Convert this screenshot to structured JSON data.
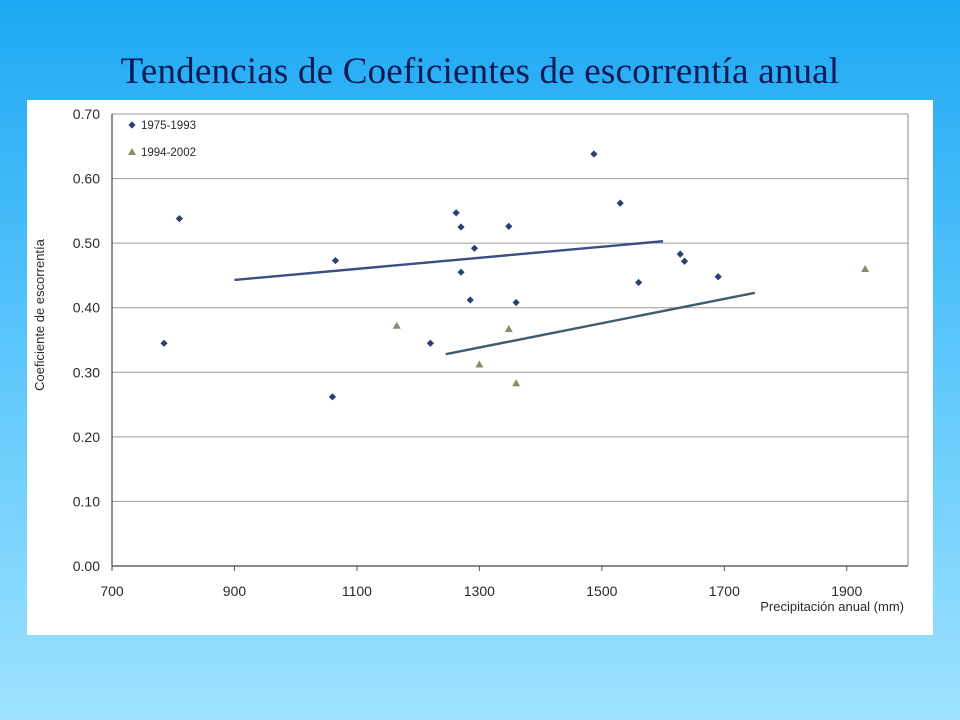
{
  "slide": {
    "title": "Tendencias de Coeficientes de escorrentía anual"
  },
  "chart_data": {
    "type": "scatter",
    "xlabel": "Precipitación anual (mm)",
    "ylabel": "Coeficiente de escorrentía",
    "xlim": [
      700,
      2000
    ],
    "ylim": [
      0,
      0.7
    ],
    "x_ticks": [
      700,
      900,
      1100,
      1300,
      1500,
      1700,
      1900
    ],
    "x_tick_labels": [
      "700",
      "900",
      "1100",
      "1300",
      "1500",
      "1700",
      "1900"
    ],
    "y_ticks": [
      0,
      0.1,
      0.2,
      0.3,
      0.4,
      0.5,
      0.6,
      0.7
    ],
    "y_tick_labels": [
      "0.00",
      "0.10",
      "0.20",
      "0.30",
      "0.40",
      "0.50",
      "0.60",
      "0.70"
    ],
    "grid": "horizontal",
    "legend_position": "top-left",
    "series": [
      {
        "name": "1975-1993",
        "marker": "diamond",
        "color": "#2b3f74",
        "points": [
          [
            785,
            0.345
          ],
          [
            810,
            0.538
          ],
          [
            1060,
            0.262
          ],
          [
            1065,
            0.473
          ],
          [
            1220,
            0.345
          ],
          [
            1262,
            0.547
          ],
          [
            1270,
            0.525
          ],
          [
            1270,
            0.455
          ],
          [
            1285,
            0.412
          ],
          [
            1292,
            0.492
          ],
          [
            1348,
            0.526
          ],
          [
            1360,
            0.408
          ],
          [
            1487,
            0.638
          ],
          [
            1530,
            0.562
          ],
          [
            1560,
            0.439
          ],
          [
            1628,
            0.483
          ],
          [
            1635,
            0.472
          ],
          [
            1690,
            0.448
          ]
        ],
        "trendline": [
          [
            900,
            0.443
          ],
          [
            1600,
            0.503
          ]
        ]
      },
      {
        "name": "1994-2002",
        "marker": "triangle",
        "color": "#8f8a66",
        "points": [
          [
            1165,
            0.372
          ],
          [
            1300,
            0.312
          ],
          [
            1348,
            0.367
          ],
          [
            1360,
            0.283
          ],
          [
            1930,
            0.46
          ]
        ],
        "trendline": [
          [
            1245,
            0.328
          ],
          [
            1750,
            0.423
          ]
        ]
      }
    ]
  }
}
